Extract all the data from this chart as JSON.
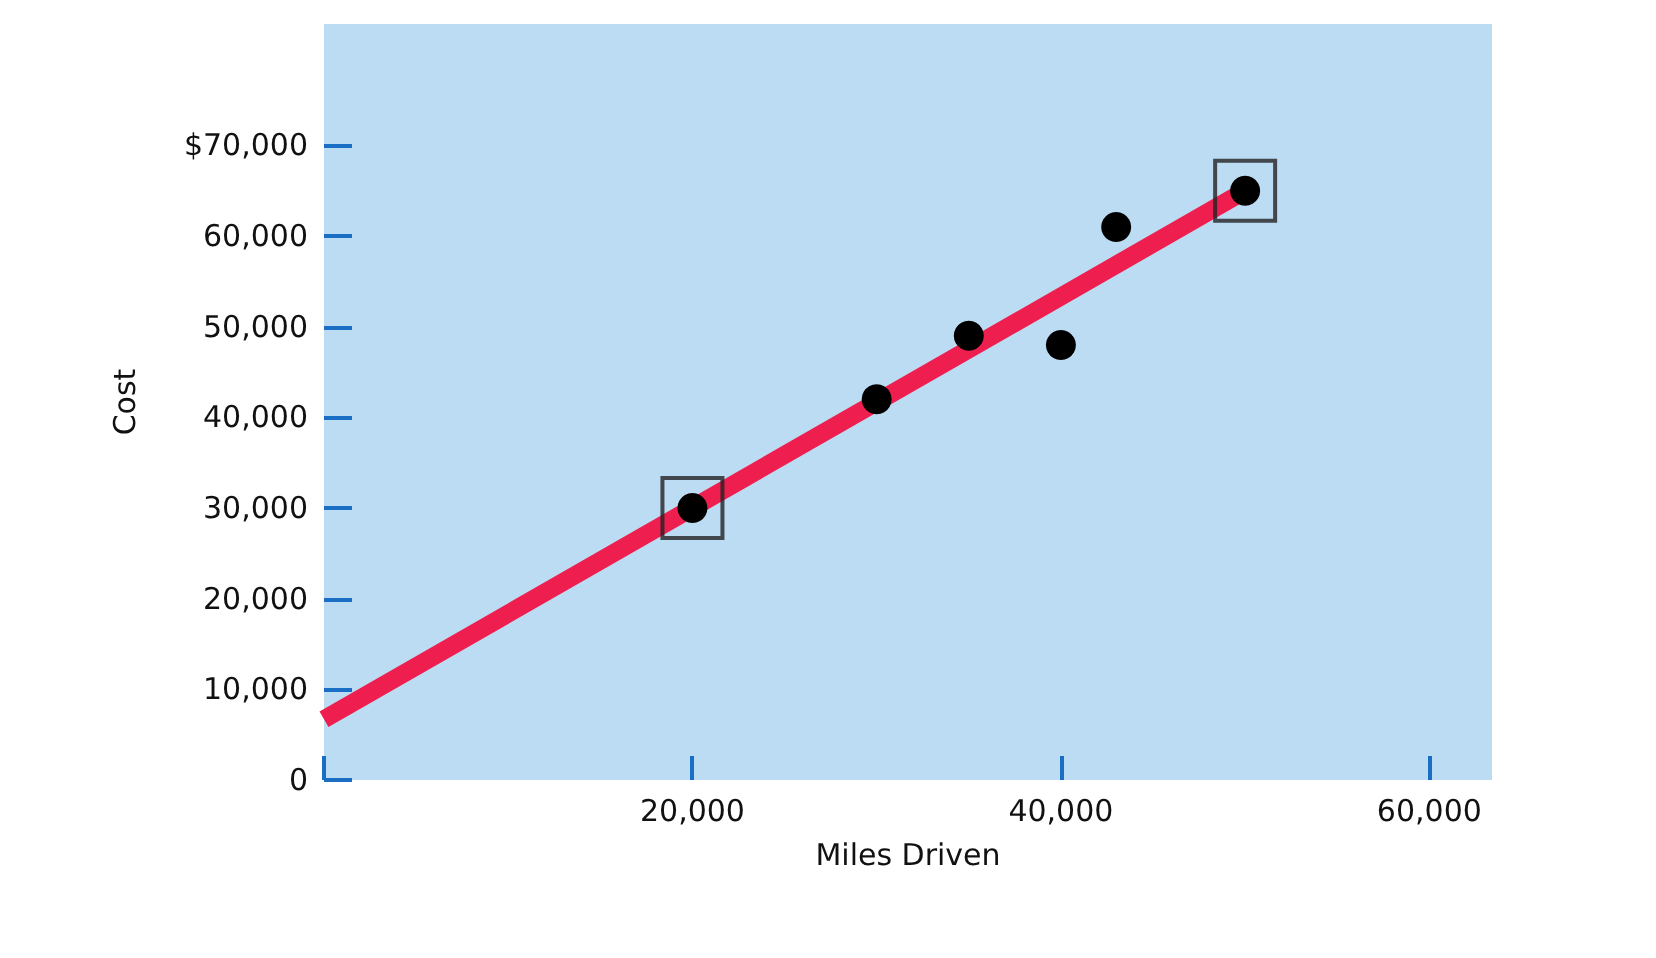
{
  "chart_data": {
    "type": "scatter",
    "xlabel": "Miles Driven",
    "ylabel": "Cost",
    "series": [
      {
        "color": "#000000",
        "x": [
          20000,
          30000,
          35000,
          40000,
          43000,
          50000
        ],
        "values": [
          30000,
          42000,
          49000,
          48000,
          61000,
          65000
        ],
        "marker": "circle"
      },
      {
        "type": "line",
        "color": "#ee1f4f",
        "x": [
          0,
          50000
        ],
        "values": [
          6700,
          65000
        ],
        "marker": "none"
      },
      {
        "type": "scatter",
        "color": "#222222",
        "x": [
          20000,
          50000
        ],
        "values": [
          30000,
          65000
        ],
        "marker": "square"
      }
    ],
    "xlim": [
      0,
      63400
    ],
    "xticks": [
      {
        "value": 0,
        "label": null
      },
      {
        "value": 20000,
        "label": "20,000"
      },
      {
        "value": 40000,
        "label": "40,000"
      },
      {
        "value": 60000,
        "label": "60,000"
      }
    ],
    "ylim": [
      0,
      83400
    ],
    "yticks": [
      0,
      {
        "value": 10000,
        "label": "10,000"
      },
      {
        "value": 20000,
        "label": "20,000"
      },
      {
        "value": 30000,
        "label": "30,000"
      },
      {
        "value": 40000,
        "label": "40,000"
      },
      {
        "value": 50000,
        "label": "50,000"
      },
      {
        "value": 60000,
        "label": "60,000"
      },
      {
        "value": 70000,
        "label": "$70,000"
      }
    ],
    "grid": false
  }
}
